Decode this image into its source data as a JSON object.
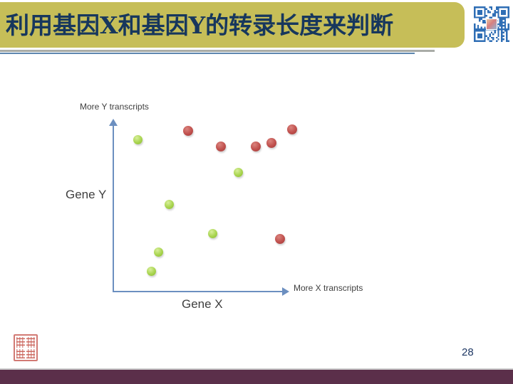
{
  "slide": {
    "title": "利用基因X和基因Y的转录长度来判断",
    "page_number": "28"
  },
  "icons": {
    "qr_code": "qr-code",
    "seal": "red-seal-stamp"
  },
  "colors": {
    "title_bg": "#C6BE58",
    "title_text": "#17375D",
    "divider_gray": "#A9ACA7",
    "divider_blue": "#5E87B0",
    "axis_blue": "#6C8FC0",
    "label_gray": "#3F3F3F",
    "green_dot": "#A8D44E",
    "red_dot": "#C0504D",
    "footer_bar": "#5B2F4A",
    "footer_line": "#CACACA",
    "page_number": "#1F3864",
    "seal_red": "#C75B52",
    "qr_blue": "#2F6EB5"
  },
  "chart_data": {
    "type": "scatter",
    "title": "",
    "xlabel": "Gene X",
    "ylabel": "Gene Y",
    "x_axis_annotation": "More X transcripts",
    "y_axis_annotation": "More Y transcripts",
    "axes_numeric": false,
    "units": "percent of axis length from origin",
    "xlim": [
      0,
      100
    ],
    "ylim": [
      0,
      100
    ],
    "grid": false,
    "legend": "none",
    "series": [
      {
        "name": "green",
        "color": "#A8D44E",
        "points": [
          {
            "x": 14,
            "y": 89
          },
          {
            "x": 32,
            "y": 51
          },
          {
            "x": 72,
            "y": 70
          },
          {
            "x": 57,
            "y": 34
          },
          {
            "x": 26,
            "y": 23
          },
          {
            "x": 22,
            "y": 12
          }
        ]
      },
      {
        "name": "red",
        "color": "#C0504D",
        "points": [
          {
            "x": 43,
            "y": 94
          },
          {
            "x": 62,
            "y": 85
          },
          {
            "x": 82,
            "y": 85
          },
          {
            "x": 91,
            "y": 87
          },
          {
            "x": 103,
            "y": 95
          },
          {
            "x": 96,
            "y": 31
          }
        ]
      }
    ]
  }
}
